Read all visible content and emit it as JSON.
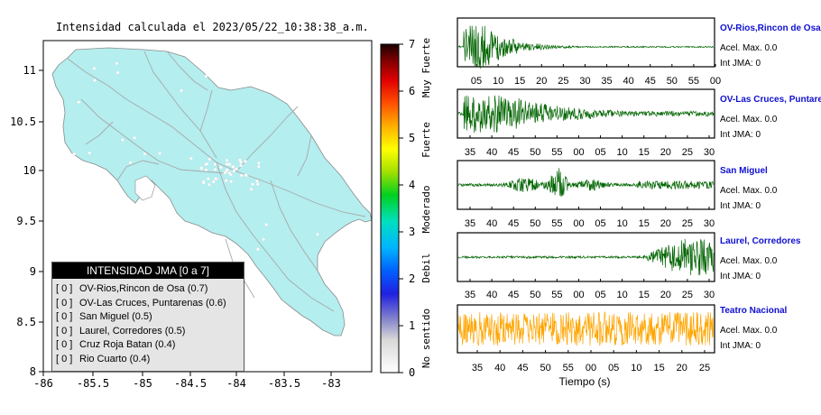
{
  "title": "Intensidad calculada el 2023/05/22_10:38:38_a.m.",
  "map": {
    "x_ticks": [
      "-86",
      "-85.5",
      "-85",
      "-84.5",
      "-84",
      "-83.5",
      "-83"
    ],
    "y_ticks": [
      "11",
      "10.5",
      "10",
      "9.5",
      "9",
      "8.5",
      "8"
    ],
    "land_color": "#b4eeef",
    "road_color": "#a8a8a8"
  },
  "colorbar": {
    "ticks": [
      "0",
      "1",
      "2",
      "3",
      "4",
      "5",
      "6",
      "7"
    ],
    "categories": [
      "No sentido",
      "Debil",
      "Moderado",
      "Fuerte",
      "Muy Fuerte"
    ]
  },
  "legend": {
    "title": "INTENSIDAD JMA [0 a 7]",
    "items": [
      {
        "box": "[ 0 ]",
        "label": "OV-Rios,Rincon de Osa (0.7)"
      },
      {
        "box": "[ 0 ]",
        "label": "OV-Las Cruces, Puntarenas (0.6)"
      },
      {
        "box": "[ 0 ]",
        "label": "San Miguel (0.5)"
      },
      {
        "box": "[ 0 ]",
        "label": "Laurel, Corredores (0.5)"
      },
      {
        "box": "[ 0 ]",
        "label": "Cruz Roja Batan (0.4)"
      },
      {
        "box": "[ 0 ]",
        "label": "Rio Cuarto (0.4)"
      }
    ]
  },
  "stations": [
    {
      "name": "OV-Rios,Rincon de Osa",
      "accel": "Acel. Max. 0.0",
      "jma": "Int JMA: 0",
      "color": "#006400",
      "ticks": [
        "05",
        "10",
        "15",
        "20",
        "25",
        "30",
        "35",
        "40",
        "45",
        "50",
        "55",
        "00"
      ]
    },
    {
      "name": "OV-Las Cruces, Puntarenas",
      "accel": "Acel. Max. 0.0",
      "jma": "Int JMA: 0",
      "color": "#006400",
      "ticks": [
        "35",
        "40",
        "45",
        "50",
        "55",
        "00",
        "05",
        "10",
        "15",
        "20",
        "25",
        "30"
      ]
    },
    {
      "name": "San Miguel",
      "accel": "Acel. Max. 0.0",
      "jma": "Int JMA: 0",
      "color": "#006400",
      "ticks": [
        "35",
        "40",
        "45",
        "50",
        "55",
        "00",
        "05",
        "10",
        "15",
        "20",
        "25",
        "30"
      ]
    },
    {
      "name": "Laurel, Corredores",
      "accel": "Acel. Max. 0.0",
      "jma": "Int JMA: 0",
      "color": "#006400",
      "ticks": [
        "35",
        "40",
        "45",
        "50",
        "55",
        "00",
        "05",
        "10",
        "15",
        "20",
        "25",
        "30"
      ]
    },
    {
      "name": "Teatro Nacional",
      "accel": "Acel. Max. 0.0",
      "jma": "Int JMA: 0",
      "color": "#ffa500",
      "ticks": [
        "35",
        "40",
        "45",
        "50",
        "55",
        "00",
        "05",
        "10",
        "15",
        "20",
        "25"
      ]
    }
  ],
  "xlabel": "Tiempo (s)",
  "chart_data": [
    {
      "type": "heatmap",
      "title": "Intensidad calculada el 2023/05/22_10:38:38_a.m.",
      "xlim": [
        -86,
        -82.6
      ],
      "ylim": [
        8,
        11.25
      ],
      "colorbar_range": [
        0,
        7
      ],
      "station_intensities": [
        {
          "name": "OV-Rios,Rincon de Osa",
          "value": 0.7
        },
        {
          "name": "OV-Las Cruces, Puntarenas",
          "value": 0.6
        },
        {
          "name": "San Miguel",
          "value": 0.5
        },
        {
          "name": "Laurel, Corredores",
          "value": 0.5
        },
        {
          "name": "Cruz Roja Batan",
          "value": 0.4
        },
        {
          "name": "Rio Cuarto",
          "value": 0.4
        }
      ]
    },
    {
      "type": "line",
      "title": "Seismograms",
      "xlabel": "Tiempo (s)",
      "series": [
        {
          "name": "OV-Rios,Rincon de Osa",
          "peak_accel": 0.0,
          "jma": 0
        },
        {
          "name": "OV-Las Cruces, Puntarenas",
          "peak_accel": 0.0,
          "jma": 0
        },
        {
          "name": "San Miguel",
          "peak_accel": 0.0,
          "jma": 0
        },
        {
          "name": "Laurel, Corredores",
          "peak_accel": 0.0,
          "jma": 0
        },
        {
          "name": "Teatro Nacional",
          "peak_accel": 0.0,
          "jma": 0
        }
      ]
    }
  ]
}
